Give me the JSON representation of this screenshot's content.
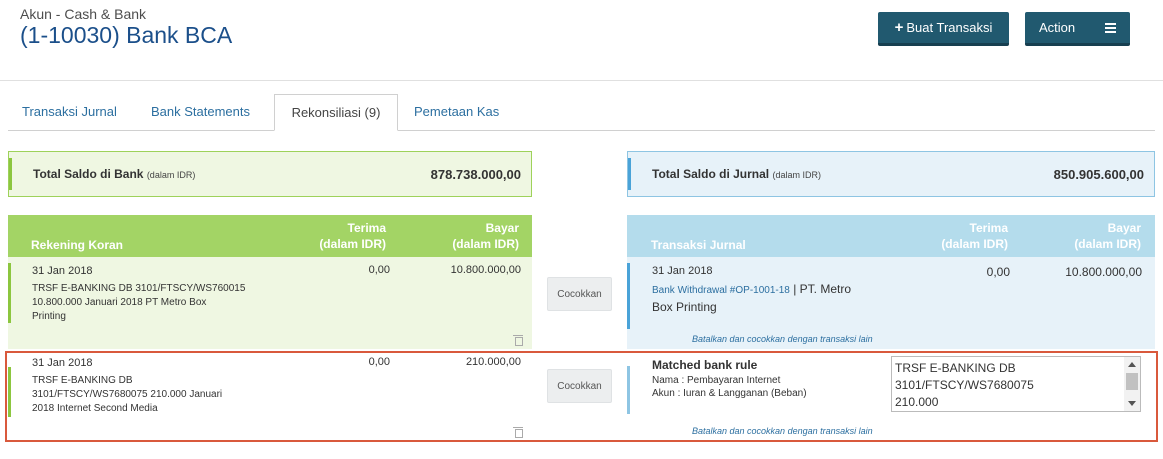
{
  "header": {
    "subtitle": "Akun - Cash & Bank",
    "title": "(1-10030) Bank BCA",
    "create_button": "Buat Transaksi",
    "action_button": "Action"
  },
  "tabs": [
    {
      "label": "Transaksi Jurnal"
    },
    {
      "label": "Bank Statements"
    },
    {
      "label": "Rekonsiliasi (9)",
      "active": true
    },
    {
      "label": "Pemetaan Kas"
    }
  ],
  "bank_total": {
    "label": "Total Saldo di Bank",
    "unit": "(dalam IDR)",
    "value": "878.738.000,00"
  },
  "journal_total": {
    "label": "Total Saldo di Jurnal",
    "unit": "(dalam IDR)",
    "value": "850.905.600,00"
  },
  "left_table": {
    "title": "Rekening Koran",
    "col_receive": "Terima",
    "col_pay": "Bayar",
    "col_unit": "(dalam IDR)"
  },
  "right_table": {
    "title": "Transaksi Jurnal",
    "col_receive": "Terima",
    "col_pay": "Bayar",
    "col_unit": "(dalam IDR)"
  },
  "rows": [
    {
      "date": "31 Jan 2018",
      "desc_line1": "TRSF E-BANKING DB 3101/FTSCY/WS760015",
      "desc_line2": "10.800.000 Januari 2018 PT Metro Box",
      "desc_line3": "Printing",
      "receive": "0,00",
      "pay": "10.800.000,00",
      "match_button": "Cocokkan",
      "journal": {
        "date": "31 Jan 2018",
        "link": "Bank Withdrawal #OP-1001-18",
        "separator": " | ",
        "party_line1": "PT. Metro",
        "party_line2": "Box Printing",
        "receive": "0,00",
        "pay": "10.800.000,00",
        "cancel_link": "Batalkan dan cocokkan dengan transaksi lain"
      }
    },
    {
      "date": "31 Jan 2018",
      "desc_line1": "TRSF E-BANKING DB",
      "desc_line2": "3101/FTSCY/WS7680075 210.000 Januari",
      "desc_line3": "2018 Internet Second Media",
      "receive": "0,00",
      "pay": "210.000,00",
      "match_button": "Cocokkan",
      "rule": {
        "title": "Matched bank rule",
        "name": "Nama : Pembayaran Internet",
        "account": "Akun : Iuran & Langganan (Beban)",
        "memo_line1": "TRSF E-BANKING DB",
        "memo_line2": "3101/FTSCY/WS7680075",
        "memo_line3": "210.000",
        "cancel_link": "Batalkan dan cocokkan dengan transaksi lain"
      }
    }
  ],
  "colors": {
    "brand_dark": "#21596f",
    "bank_green": "#a3d465",
    "journal_blue": "#b4dcec",
    "highlight": "#d9593c"
  }
}
